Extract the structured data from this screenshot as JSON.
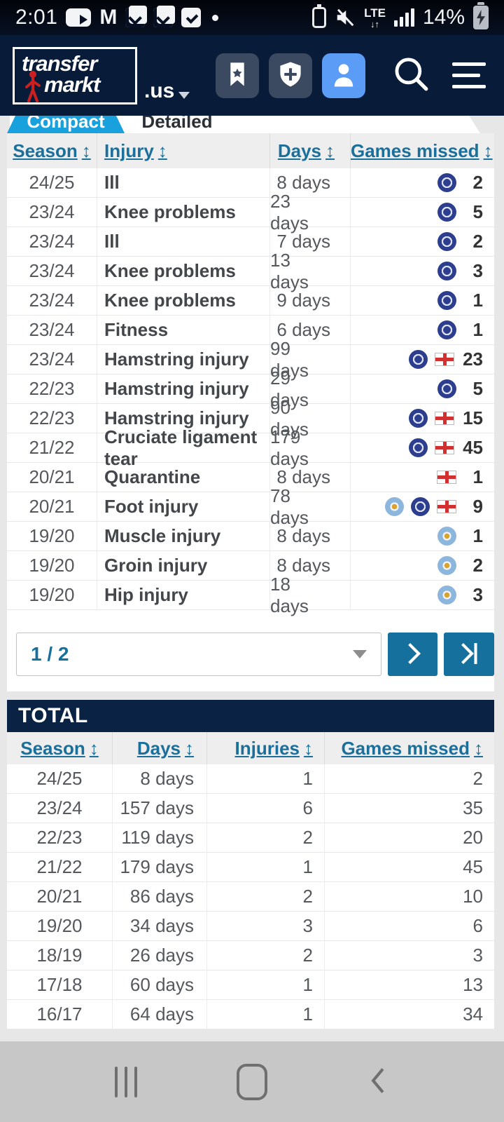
{
  "status_bar": {
    "time": "2:01",
    "network": "LTE",
    "network_arrows": "↓↑",
    "battery_pct": "14%",
    "left_icons": [
      "youtube-icon",
      "gmail-icon",
      "mail-icon",
      "mail-icon",
      "check-icon",
      "notification-dot"
    ],
    "right_icons": [
      "battery-saver-icon",
      "mute-icon",
      "lte-indicator",
      "signal-bars-icon",
      "battery-charging-icon"
    ]
  },
  "header": {
    "logo_line1": "transfer",
    "logo_line2": "markt",
    "domain": ".us",
    "action_icons": [
      "bookmark-star-icon",
      "shield-plus-icon",
      "person-icon",
      "search-icon",
      "menu-icon"
    ],
    "accent_blue": "#5b9cf6",
    "navy": "#081c3a"
  },
  "tabs": [
    {
      "label": "Compact",
      "active": true
    },
    {
      "label": "Detailed",
      "active": false
    }
  ],
  "icons": {
    "sort": "↕"
  },
  "injury_table": {
    "columns": [
      "Season",
      "Injury",
      "Days",
      "Games missed"
    ],
    "rows": [
      {
        "season": "24/25",
        "injury": "Ill",
        "days": "8 days",
        "clubs": [
          "chelsea"
        ],
        "games": "2"
      },
      {
        "season": "23/24",
        "injury": "Knee problems",
        "days": "23 days",
        "clubs": [
          "chelsea"
        ],
        "games": "5"
      },
      {
        "season": "23/24",
        "injury": "Ill",
        "days": "7 days",
        "clubs": [
          "chelsea"
        ],
        "games": "2"
      },
      {
        "season": "23/24",
        "injury": "Knee problems",
        "days": "13 days",
        "clubs": [
          "chelsea"
        ],
        "games": "3"
      },
      {
        "season": "23/24",
        "injury": "Knee problems",
        "days": "9 days",
        "clubs": [
          "chelsea"
        ],
        "games": "1"
      },
      {
        "season": "23/24",
        "injury": "Fitness",
        "days": "6 days",
        "clubs": [
          "chelsea"
        ],
        "games": "1"
      },
      {
        "season": "23/24",
        "injury": "Hamstring injury",
        "days": "99 days",
        "clubs": [
          "chelsea",
          "england"
        ],
        "games": "23"
      },
      {
        "season": "22/23",
        "injury": "Hamstring injury",
        "days": "29 days",
        "clubs": [
          "chelsea"
        ],
        "games": "5"
      },
      {
        "season": "22/23",
        "injury": "Hamstring injury",
        "days": "90 days",
        "clubs": [
          "chelsea",
          "england"
        ],
        "games": "15"
      },
      {
        "season": "21/22",
        "injury": "Cruciate ligament tear",
        "days": "179 days",
        "clubs": [
          "chelsea",
          "england"
        ],
        "games": "45"
      },
      {
        "season": "20/21",
        "injury": "Quarantine",
        "days": "8 days",
        "clubs": [
          "england"
        ],
        "games": "1"
      },
      {
        "season": "20/21",
        "injury": "Foot injury",
        "days": "78 days",
        "clubs": [
          "leicester",
          "chelsea",
          "england"
        ],
        "games": "9"
      },
      {
        "season": "19/20",
        "injury": "Muscle injury",
        "days": "8 days",
        "clubs": [
          "leicester"
        ],
        "games": "1"
      },
      {
        "season": "19/20",
        "injury": "Groin injury",
        "days": "8 days",
        "clubs": [
          "leicester"
        ],
        "games": "2"
      },
      {
        "season": "19/20",
        "injury": "Hip injury",
        "days": "18 days",
        "clubs": [
          "leicester"
        ],
        "games": "3"
      }
    ],
    "club_badges": {
      "chelsea": "chelsea-badge-icon",
      "england": "england-flag-icon",
      "leicester": "leicester-badge-icon"
    }
  },
  "pagination": {
    "current": "1 / 2",
    "buttons": [
      "next-page",
      "last-page"
    ]
  },
  "total_section": {
    "title": "TOTAL",
    "columns": [
      "Season",
      "Days",
      "Injuries",
      "Games missed"
    ],
    "rows": [
      {
        "season": "24/25",
        "days": "8 days",
        "injuries": "1",
        "games": "2"
      },
      {
        "season": "23/24",
        "days": "157 days",
        "injuries": "6",
        "games": "35"
      },
      {
        "season": "22/23",
        "days": "119 days",
        "injuries": "2",
        "games": "20"
      },
      {
        "season": "21/22",
        "days": "179 days",
        "injuries": "1",
        "games": "45"
      },
      {
        "season": "20/21",
        "days": "86 days",
        "injuries": "2",
        "games": "10"
      },
      {
        "season": "19/20",
        "days": "34 days",
        "injuries": "3",
        "games": "6"
      },
      {
        "season": "18/19",
        "days": "26 days",
        "injuries": "2",
        "games": "3"
      },
      {
        "season": "17/18",
        "days": "60 days",
        "injuries": "1",
        "games": "13"
      },
      {
        "season": "16/17",
        "days": "64 days",
        "injuries": "1",
        "games": "34"
      }
    ]
  },
  "colors": {
    "link": "#1a6f9b",
    "tab_active": "#19a1dd",
    "pagination_button": "#15709d",
    "total_bar": "#0a2244"
  }
}
